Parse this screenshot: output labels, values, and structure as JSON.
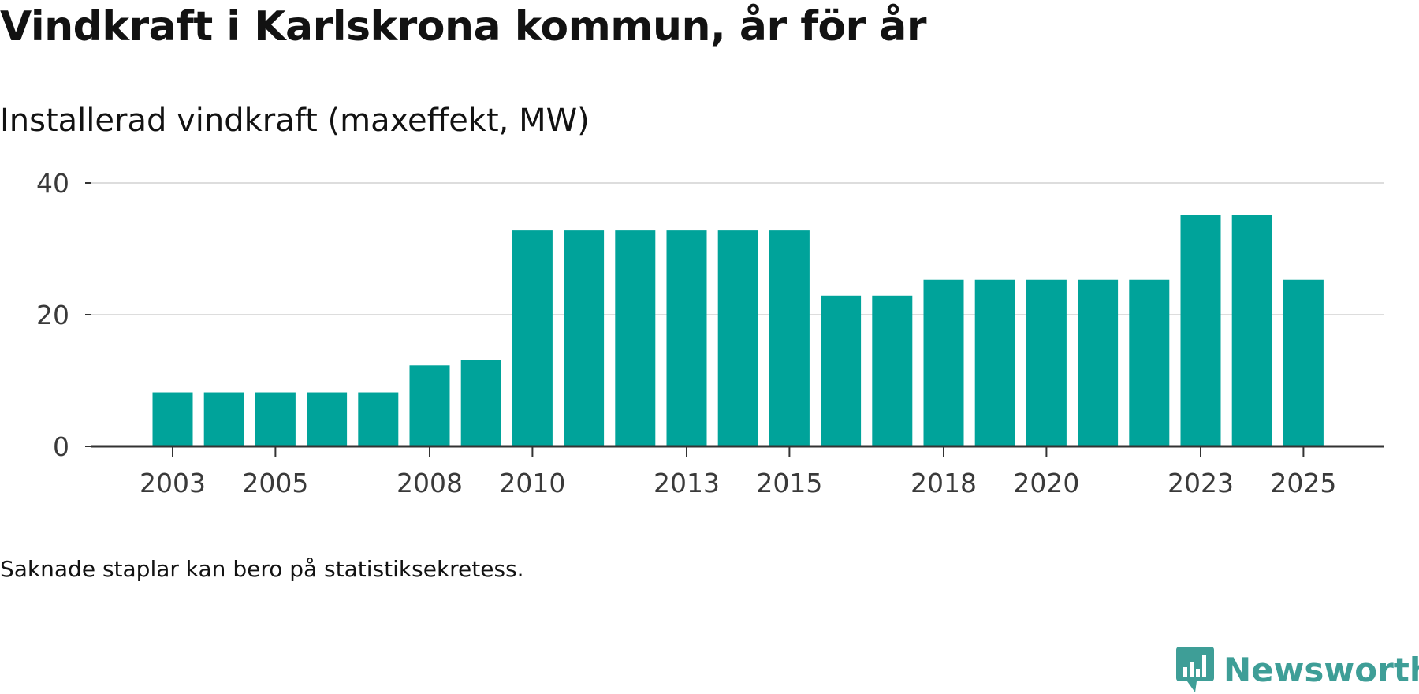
{
  "title": "Vindkraft i Karlskrona kommun, år för år",
  "subtitle": "Installerad vindkraft (maxeffekt, MW)",
  "footnote": "Saknade staplar kan bero på statistiksekretess.",
  "brand": {
    "name": "Newsworthy",
    "color": "#3e9e97"
  },
  "chart_data": {
    "type": "bar",
    "title": "Vindkraft i Karlskrona kommun, år för år",
    "ylabel": "Installerad vindkraft (maxeffekt, MW)",
    "xlabel": "",
    "ylim": [
      0,
      40
    ],
    "yticks": [
      0,
      20,
      40
    ],
    "grid": true,
    "bar_color": "#00a39a",
    "categories": [
      "2003",
      "2004",
      "2005",
      "2006",
      "2007",
      "2008",
      "2009",
      "2010",
      "2011",
      "2012",
      "2013",
      "2014",
      "2015",
      "2016",
      "2017",
      "2018",
      "2019",
      "2020",
      "2021",
      "2022",
      "2023",
      "2024",
      "2025"
    ],
    "values": [
      8.2,
      8.2,
      8.2,
      8.2,
      8.2,
      12.3,
      13.1,
      32.8,
      32.8,
      32.8,
      32.8,
      32.8,
      32.8,
      22.9,
      22.9,
      25.3,
      25.3,
      25.3,
      25.3,
      25.3,
      35.1,
      35.1,
      25.3
    ],
    "xtick_labels": [
      "2003",
      "2005",
      "2008",
      "2010",
      "2013",
      "2015",
      "2018",
      "2020",
      "2023",
      "2025"
    ]
  }
}
